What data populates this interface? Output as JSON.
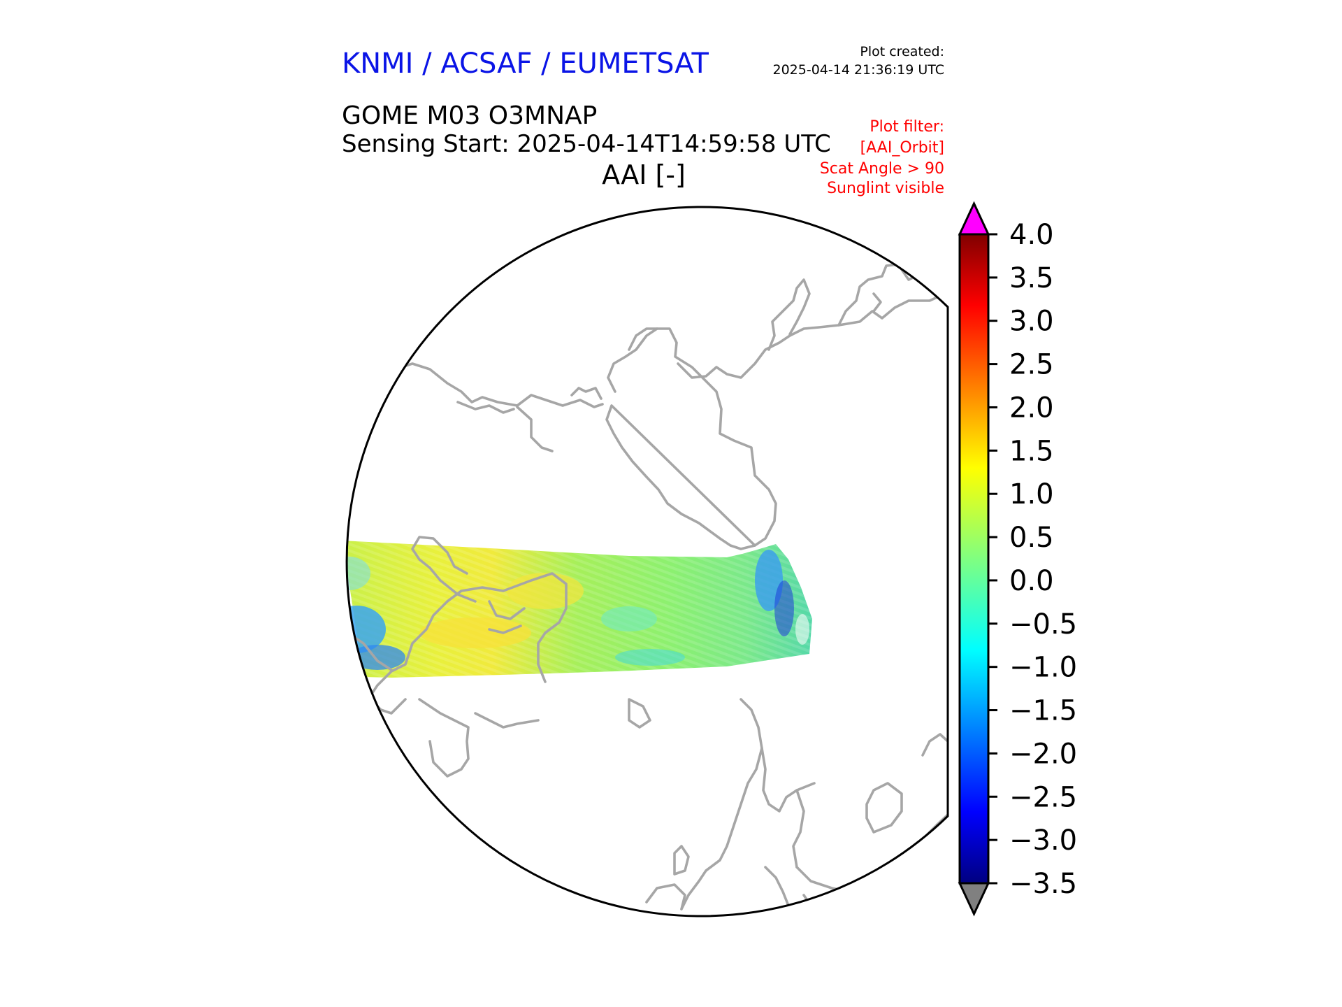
{
  "header": {
    "agency": "KNMI / ACSAF / EUMETSAT",
    "agency_color": "#0a14e6",
    "created_label": "Plot created:",
    "created_time": "2025-04-14 21:36:19 UTC",
    "product": "GOME M03 O3MNAP",
    "sensing": "Sensing Start: 2025-04-14T14:59:58 UTC",
    "variable": "AAI [-]"
  },
  "filter": {
    "color": "#ff0000",
    "lines": [
      "Plot filter:",
      "[AAI_Orbit]",
      "Scat Angle > 90",
      "Sunglint visible"
    ]
  },
  "map": {
    "projection": "north polar stereographic",
    "coastline_color": "#a6a6a6",
    "border_color": "#000000"
  },
  "colorbar": {
    "colormap": "jet",
    "min": -3.5,
    "max": 4.0,
    "ticks": [
      "4.0",
      "3.5",
      "3.0",
      "2.5",
      "2.0",
      "1.5",
      "1.0",
      "0.5",
      "0.0",
      "−0.5",
      "−1.0",
      "−1.5",
      "−2.0",
      "−2.5",
      "−3.0",
      "−3.5"
    ],
    "extend_max_color": "#ff00ff",
    "extend_min_color": "#808080"
  }
}
